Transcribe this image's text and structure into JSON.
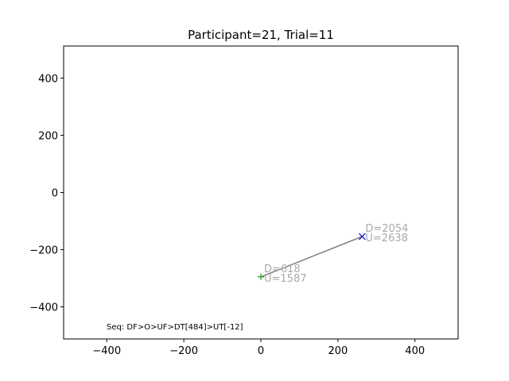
{
  "chart_data": {
    "type": "scatter",
    "title": "Participant=21, Trial=11",
    "xlabel": "",
    "ylabel": "",
    "xlim": [
      -512,
      512
    ],
    "ylim": [
      -512,
      512
    ],
    "xticks": [
      -400,
      -200,
      0,
      200,
      400
    ],
    "yticks": [
      -400,
      -200,
      0,
      200,
      400
    ],
    "xtick_labels": [
      "−400",
      "−200",
      "0",
      "200",
      "400"
    ],
    "ytick_labels": [
      "−400",
      "−200",
      "0",
      "200",
      "400"
    ],
    "grid": false,
    "line": {
      "color": "#808080",
      "points": [
        [
          0,
          -295
        ],
        [
          263,
          -154
        ]
      ]
    },
    "points": [
      {
        "marker": "plus",
        "color": "#2ca02c",
        "x": 0,
        "y": -295,
        "labels": [
          "D=618",
          "U=1587"
        ]
      },
      {
        "marker": "x",
        "color": "#1f1fcf",
        "x": 263,
        "y": -154,
        "labels": [
          "D=2054",
          "U=2638"
        ]
      }
    ],
    "annotation_color": "#aaaaaa",
    "sequence_text": "Seq: DF>O>UF>DT[484]>UT[-12]"
  }
}
